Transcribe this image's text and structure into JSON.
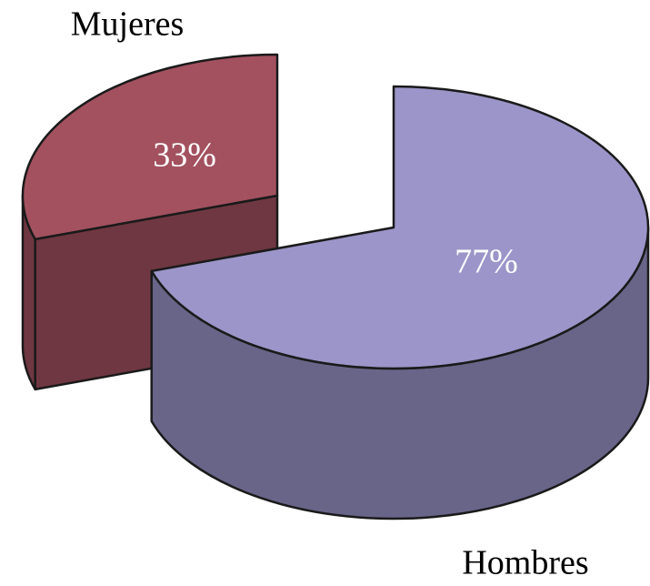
{
  "chart_data": {
    "type": "pie",
    "categories": [
      "Hombres",
      "Mujeres"
    ],
    "values": [
      77,
      33
    ],
    "value_labels": [
      "77%",
      "33%"
    ],
    "colors": [
      "#9b95c9",
      "#a3515f"
    ]
  }
}
